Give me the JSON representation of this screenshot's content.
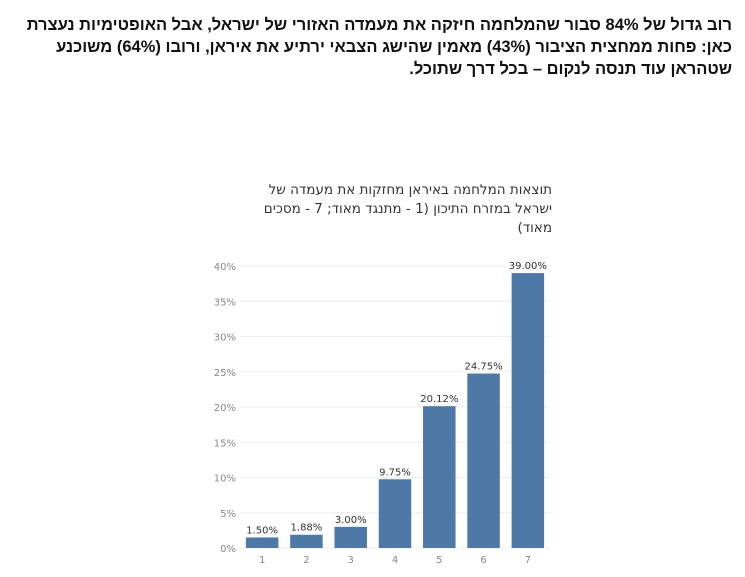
{
  "intro": {
    "lines": [
      "רוב גדול של 84% סבור שהמלחמה חיזקה את מעמדה האזורי של ישראל, אבל האופטימיות נעצרת",
      "כאן: פחות ממחצית הציבור (43%)  מאמין שהישג הצבאי ירתיע את איראן, ורובו (64%) משוכנע",
      "שטהראן עוד תנסה לנקום – בכל דרך שתוכל."
    ]
  },
  "chart_data": {
    "type": "bar",
    "title_lines": [
      "תוצאות המלחמה באיראן מחזקות את מעמדה של",
      "ישראל במזרח התיכון (1 - מתנגד מאוד; 7 - מסכים",
      "מאוד)"
    ],
    "categories": [
      "1",
      "2",
      "3",
      "4",
      "5",
      "6",
      "7"
    ],
    "values": [
      1.5,
      1.88,
      3.0,
      9.75,
      20.12,
      24.75,
      39.0
    ],
    "data_labels": [
      "1.50%",
      "1.88%",
      "3.00%",
      "9.75%",
      "20.12%",
      "24.75%",
      "39.00%"
    ],
    "y_ticks": [
      0,
      5,
      10,
      15,
      20,
      25,
      30,
      35,
      40
    ],
    "y_tick_labels": [
      "0%",
      "5%",
      "10%",
      "15%",
      "20%",
      "25%",
      "30%",
      "35%",
      "40%"
    ],
    "ylim": [
      0,
      41
    ],
    "grid": true,
    "bar_color": "#4e79a7"
  }
}
